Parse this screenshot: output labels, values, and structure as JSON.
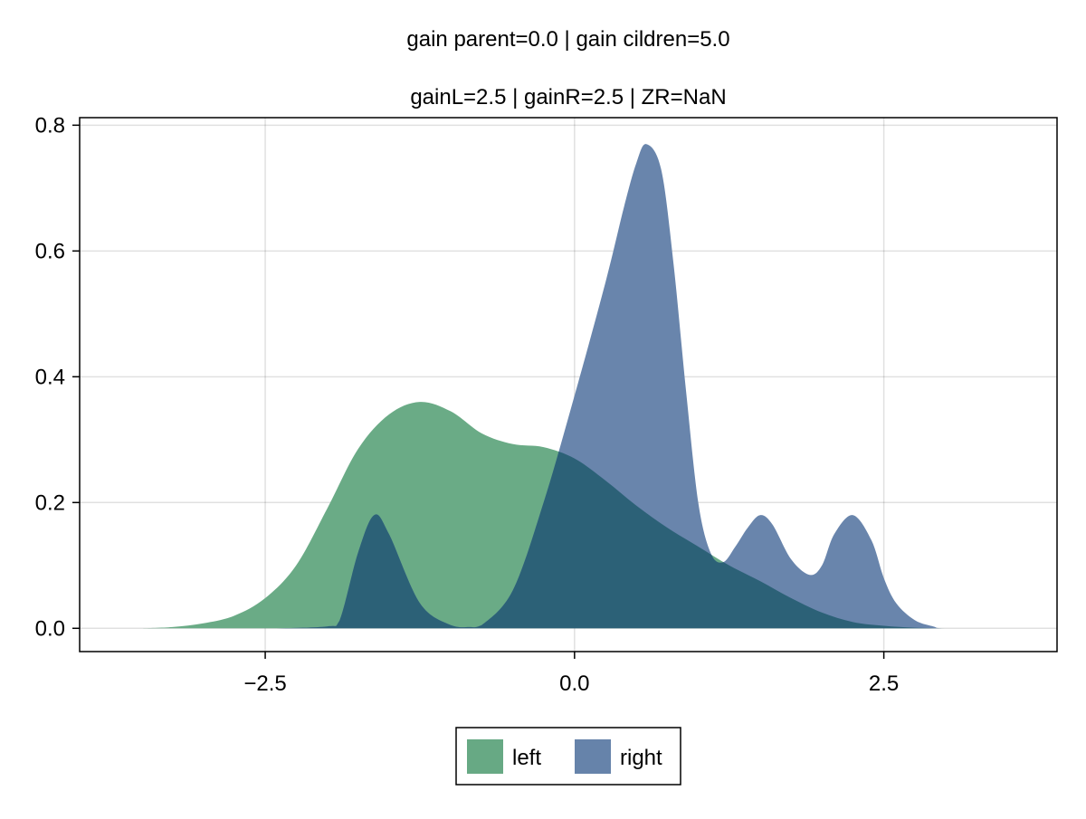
{
  "chart_data": {
    "type": "area",
    "title": "gain parent=0.0 | gain cildren=5.0",
    "subtitle": "gainL=2.5 | gainR=2.5 | ZR=NaN",
    "xlabel": "",
    "ylabel": "",
    "xlim": [
      -4.0,
      3.9
    ],
    "ylim": [
      -0.037,
      0.812
    ],
    "xticks": [
      -2.5,
      0.0,
      2.5
    ],
    "xtick_labels": [
      "−2.5",
      "0.0",
      "2.5"
    ],
    "yticks": [
      0.0,
      0.2,
      0.4,
      0.6,
      0.8
    ],
    "ytick_labels": [
      "0.0",
      "0.2",
      "0.4",
      "0.6",
      "0.8"
    ],
    "grid": true,
    "legend_position": "bottom-center",
    "legend_orientation": "horizontal",
    "series": [
      {
        "name": "left",
        "color": "#67A984",
        "x": [
          -3.5,
          -3.25,
          -3.0,
          -2.75,
          -2.5,
          -2.25,
          -2.0,
          -1.75,
          -1.5,
          -1.25,
          -1.0,
          -0.75,
          -0.5,
          -0.25,
          0.0,
          0.25,
          0.5,
          0.75,
          1.0,
          1.25,
          1.5,
          1.75,
          2.0,
          2.25,
          2.5,
          2.75,
          3.0,
          3.25,
          3.5
        ],
        "values": [
          0.0,
          0.002,
          0.008,
          0.02,
          0.048,
          0.1,
          0.19,
          0.285,
          0.34,
          0.36,
          0.345,
          0.31,
          0.293,
          0.288,
          0.27,
          0.235,
          0.195,
          0.16,
          0.13,
          0.1,
          0.075,
          0.048,
          0.025,
          0.01,
          0.004,
          0.001,
          0.0,
          0.0,
          0.0
        ]
      },
      {
        "name": "right",
        "color": "#6683AA",
        "x": [
          -3.5,
          -2.5,
          -2.0,
          -1.9,
          -1.75,
          -1.62,
          -1.5,
          -1.25,
          -1.0,
          -0.85,
          -0.75,
          -0.5,
          -0.25,
          0.0,
          0.25,
          0.4,
          0.5,
          0.58,
          0.7,
          0.8,
          0.9,
          1.0,
          1.1,
          1.2,
          1.3,
          1.4,
          1.5,
          1.6,
          1.75,
          1.9,
          2.0,
          2.1,
          2.25,
          2.4,
          2.5,
          2.6,
          2.75,
          2.9,
          3.0,
          3.5
        ],
        "values": [
          0.0,
          0.0,
          0.003,
          0.012,
          0.12,
          0.18,
          0.15,
          0.04,
          0.005,
          0.002,
          0.005,
          0.06,
          0.2,
          0.37,
          0.55,
          0.67,
          0.74,
          0.77,
          0.73,
          0.58,
          0.38,
          0.2,
          0.12,
          0.105,
          0.13,
          0.16,
          0.18,
          0.165,
          0.11,
          0.085,
          0.1,
          0.15,
          0.18,
          0.14,
          0.08,
          0.04,
          0.013,
          0.003,
          0.0,
          0.0
        ]
      }
    ]
  }
}
